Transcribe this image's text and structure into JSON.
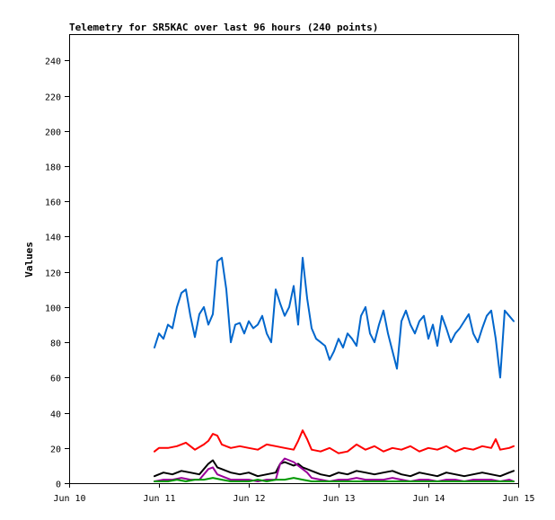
{
  "chart_data": {
    "type": "line",
    "title": "Telemetry for SR5KAC over last 96 hours (240 points)",
    "xlabel": "",
    "ylabel": "Values",
    "xlim": [
      0,
      5
    ],
    "ylim": [
      0,
      255
    ],
    "x_ticks": [
      {
        "value": 0,
        "label": "Jun 10"
      },
      {
        "value": 1,
        "label": "Jun 11"
      },
      {
        "value": 2,
        "label": "Jun 12"
      },
      {
        "value": 3,
        "label": "Jun 13"
      },
      {
        "value": 4,
        "label": "Jun 14"
      },
      {
        "value": 5,
        "label": "Jun 15"
      }
    ],
    "y_ticks": [
      0,
      20,
      40,
      60,
      80,
      100,
      120,
      140,
      160,
      180,
      200,
      220,
      240
    ],
    "grid": false,
    "x_units": "days from Jun 10",
    "series": [
      {
        "color": "#0066cc",
        "x": [
          0.95,
          1.0,
          1.05,
          1.1,
          1.15,
          1.2,
          1.25,
          1.3,
          1.35,
          1.4,
          1.45,
          1.5,
          1.55,
          1.6,
          1.65,
          1.7,
          1.75,
          1.8,
          1.85,
          1.9,
          1.95,
          2.0,
          2.05,
          2.1,
          2.15,
          2.2,
          2.25,
          2.3,
          2.35,
          2.4,
          2.45,
          2.5,
          2.55,
          2.6,
          2.65,
          2.7,
          2.75,
          2.8,
          2.85,
          2.9,
          2.95,
          3.0,
          3.05,
          3.1,
          3.15,
          3.2,
          3.25,
          3.3,
          3.35,
          3.4,
          3.45,
          3.5,
          3.55,
          3.6,
          3.65,
          3.7,
          3.75,
          3.8,
          3.85,
          3.9,
          3.95,
          4.0,
          4.05,
          4.1,
          4.15,
          4.2,
          4.25,
          4.3,
          4.35,
          4.4,
          4.45,
          4.5,
          4.55,
          4.6,
          4.65,
          4.7,
          4.75,
          4.8,
          4.85,
          4.9,
          4.95
        ],
        "y": [
          77,
          85,
          82,
          90,
          88,
          100,
          108,
          110,
          95,
          83,
          96,
          100,
          90,
          96,
          126,
          128,
          110,
          80,
          90,
          91,
          85,
          92,
          88,
          90,
          95,
          85,
          80,
          110,
          102,
          95,
          100,
          112,
          90,
          128,
          105,
          88,
          82,
          80,
          78,
          70,
          75,
          82,
          77,
          85,
          82,
          78,
          95,
          100,
          85,
          80,
          90,
          98,
          85,
          75,
          65,
          92,
          98,
          90,
          85,
          92,
          95,
          82,
          90,
          78,
          95,
          88,
          80,
          85,
          88,
          92,
          96,
          85,
          80,
          88,
          95,
          98,
          82,
          60,
          98,
          95,
          92
        ]
      },
      {
        "color": "#ff0000",
        "x": [
          0.95,
          1.0,
          1.1,
          1.2,
          1.3,
          1.4,
          1.5,
          1.55,
          1.6,
          1.65,
          1.7,
          1.8,
          1.9,
          2.0,
          2.1,
          2.2,
          2.3,
          2.4,
          2.5,
          2.55,
          2.6,
          2.65,
          2.7,
          2.8,
          2.9,
          3.0,
          3.1,
          3.2,
          3.3,
          3.4,
          3.5,
          3.6,
          3.7,
          3.8,
          3.9,
          4.0,
          4.1,
          4.2,
          4.3,
          4.4,
          4.5,
          4.6,
          4.7,
          4.75,
          4.8,
          4.9,
          4.95
        ],
        "y": [
          18,
          20,
          20,
          21,
          23,
          19,
          22,
          24,
          28,
          27,
          22,
          20,
          21,
          20,
          19,
          22,
          21,
          20,
          19,
          24,
          30,
          25,
          19,
          18,
          20,
          17,
          18,
          22,
          19,
          21,
          18,
          20,
          19,
          21,
          18,
          20,
          19,
          21,
          18,
          20,
          19,
          21,
          20,
          25,
          19,
          20,
          21
        ]
      },
      {
        "color": "#000000",
        "x": [
          0.95,
          1.05,
          1.15,
          1.25,
          1.35,
          1.45,
          1.55,
          1.6,
          1.65,
          1.7,
          1.8,
          1.9,
          2.0,
          2.1,
          2.2,
          2.3,
          2.35,
          2.4,
          2.5,
          2.55,
          2.6,
          2.65,
          2.7,
          2.8,
          2.9,
          3.0,
          3.1,
          3.2,
          3.3,
          3.4,
          3.5,
          3.6,
          3.7,
          3.8,
          3.9,
          4.0,
          4.1,
          4.2,
          4.3,
          4.4,
          4.5,
          4.6,
          4.7,
          4.8,
          4.9,
          4.95
        ],
        "y": [
          4,
          6,
          5,
          7,
          6,
          5,
          11,
          13,
          9,
          8,
          6,
          5,
          6,
          4,
          5,
          6,
          11,
          12,
          10,
          11,
          9,
          8,
          7,
          5,
          4,
          6,
          5,
          7,
          6,
          5,
          6,
          7,
          5,
          4,
          6,
          5,
          4,
          6,
          5,
          4,
          5,
          6,
          5,
          4,
          6,
          7
        ]
      },
      {
        "color": "#990099",
        "x": [
          0.95,
          1.05,
          1.15,
          1.25,
          1.35,
          1.45,
          1.55,
          1.6,
          1.65,
          1.7,
          1.8,
          1.9,
          2.0,
          2.1,
          2.2,
          2.3,
          2.35,
          2.4,
          2.5,
          2.55,
          2.6,
          2.65,
          2.7,
          2.8,
          2.9,
          3.0,
          3.1,
          3.2,
          3.3,
          3.4,
          3.5,
          3.6,
          3.7,
          3.8,
          3.9,
          4.0,
          4.1,
          4.2,
          4.3,
          4.4,
          4.5,
          4.6,
          4.7,
          4.8,
          4.9,
          4.95
        ],
        "y": [
          1,
          2,
          2,
          3,
          2,
          2,
          8,
          9,
          5,
          4,
          2,
          2,
          2,
          1,
          2,
          2,
          11,
          14,
          12,
          10,
          8,
          6,
          3,
          2,
          1,
          2,
          2,
          3,
          2,
          2,
          2,
          3,
          2,
          1,
          2,
          2,
          1,
          2,
          2,
          1,
          2,
          2,
          2,
          1,
          2,
          1
        ]
      },
      {
        "color": "#009900",
        "x": [
          0.95,
          1.1,
          1.2,
          1.3,
          1.4,
          1.5,
          1.6,
          1.7,
          1.8,
          1.9,
          2.0,
          2.1,
          2.2,
          2.3,
          2.4,
          2.5,
          2.6,
          2.7,
          2.8,
          2.9,
          3.0,
          3.2,
          3.4,
          3.6,
          3.8,
          4.0,
          4.2,
          4.4,
          4.6,
          4.8,
          4.95
        ],
        "y": [
          1,
          1,
          2,
          1,
          2,
          2,
          3,
          2,
          1,
          1,
          1,
          2,
          1,
          2,
          2,
          3,
          2,
          1,
          1,
          1,
          1,
          1,
          1,
          1,
          1,
          1,
          1,
          1,
          1,
          1,
          1
        ]
      }
    ]
  }
}
